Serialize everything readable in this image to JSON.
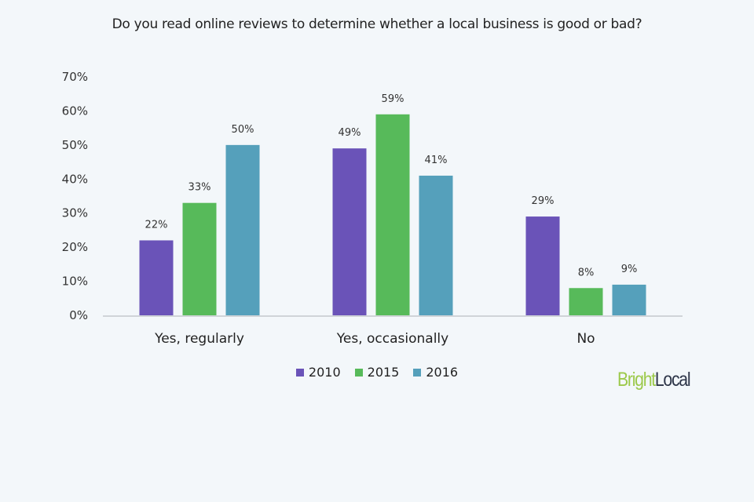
{
  "chart_data": {
    "type": "bar",
    "title": "Do you read online reviews to determine whether a local business is good or bad?",
    "categories": [
      "Yes, regularly",
      "Yes, occasionally",
      "No"
    ],
    "series": [
      {
        "name": "2010",
        "color": "#6a53b8",
        "values": [
          22,
          49,
          29
        ]
      },
      {
        "name": "2015",
        "color": "#57ba5a",
        "values": [
          33,
          59,
          8
        ]
      },
      {
        "name": "2016",
        "color": "#55a0bb",
        "values": [
          50,
          41,
          9
        ]
      }
    ],
    "ylim": [
      0,
      70
    ],
    "yticks": [
      "0%",
      "10%",
      "20%",
      "30%",
      "40%",
      "50%",
      "60%",
      "70%"
    ],
    "xlabel": "",
    "ylabel": "",
    "grid": false,
    "legend": "bottom"
  },
  "logo": {
    "part1": "Bright",
    "part2": "Local"
  }
}
